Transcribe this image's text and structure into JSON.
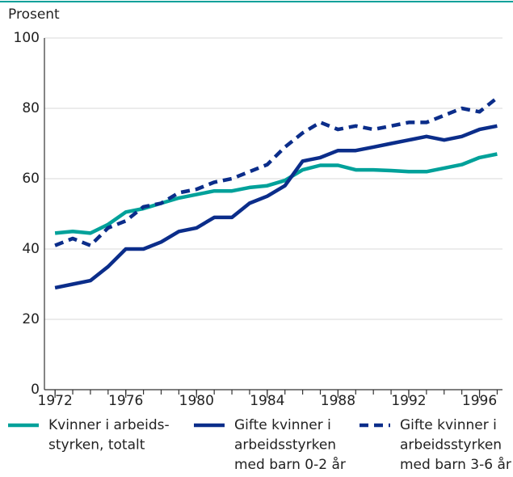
{
  "chart_data": {
    "type": "line",
    "y_axis_label": "Prosent",
    "x": [
      1972,
      1973,
      1974,
      1975,
      1976,
      1977,
      1978,
      1979,
      1980,
      1981,
      1982,
      1983,
      1984,
      1985,
      1986,
      1987,
      1988,
      1989,
      1990,
      1991,
      1992,
      1993,
      1994,
      1995,
      1996,
      1997
    ],
    "series": [
      {
        "name": "Kvinner i arbeids-\nstyrken, totalt",
        "color": "#00a19a",
        "dash": false,
        "values": [
          44.5,
          45,
          44.5,
          47,
          50.5,
          51.5,
          53,
          54.5,
          55.5,
          56.5,
          56.5,
          57.5,
          58,
          59.5,
          62.5,
          63.8,
          63.8,
          62.5,
          62.5,
          62.3,
          62,
          62,
          63,
          64,
          66,
          67
        ]
      },
      {
        "name": "Gifte kvinner i\narbeidsstyrken\nmed barn 0-2 år",
        "color": "#0b2d8a",
        "dash": false,
        "values": [
          29,
          30,
          31,
          35,
          40,
          40,
          42,
          45,
          46,
          49,
          49,
          53,
          55,
          58,
          65,
          66,
          68,
          68,
          69,
          70,
          71,
          72,
          71,
          72,
          74,
          75
        ]
      },
      {
        "name": "Gifte kvinner i\narbeidsstyrken\nmed barn 3-6 år",
        "color": "#0b2d8a",
        "dash": true,
        "values": [
          41,
          43,
          41,
          46,
          48,
          52,
          53,
          56,
          57,
          59,
          60,
          62,
          64,
          69,
          73,
          76,
          74,
          75,
          74,
          75,
          76,
          76,
          78,
          80,
          79,
          83
        ]
      }
    ],
    "xlim": [
      1971.4,
      1997.3
    ],
    "xticks": [
      1972,
      1976,
      1980,
      1984,
      1988,
      1992,
      1996
    ],
    "ylim": [
      0,
      100
    ],
    "yticks": [
      0,
      20,
      40,
      60,
      80,
      100
    ],
    "grid": true
  }
}
